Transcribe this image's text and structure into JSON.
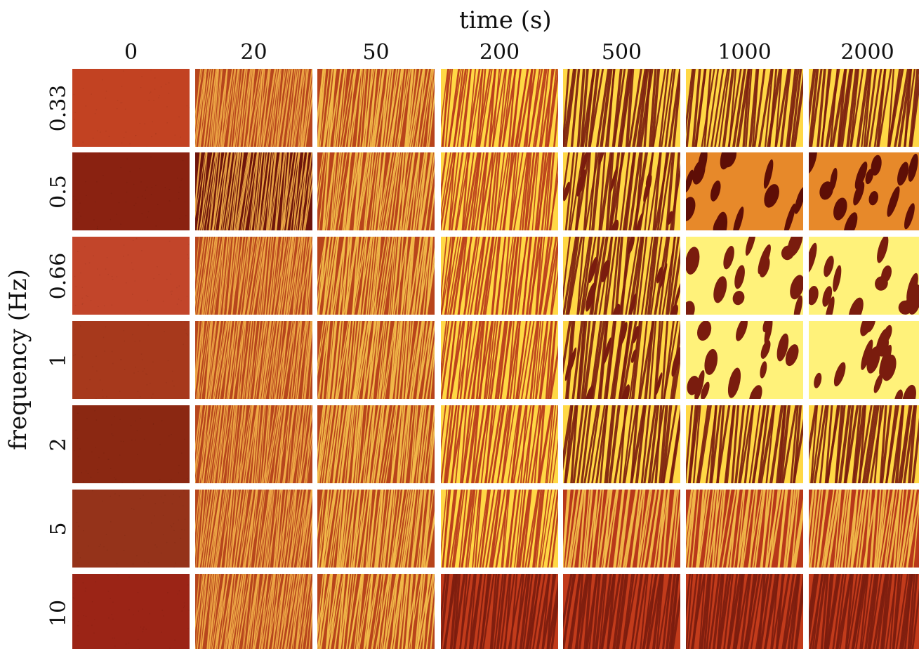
{
  "figure": {
    "x_axis_title": "time (s)",
    "y_axis_title": "frequency (Hz)",
    "time_labels": [
      "0",
      "20",
      "50",
      "200",
      "500",
      "1000",
      "2000"
    ],
    "frequency_labels": [
      "0.33",
      "0.5",
      "0.66",
      "1",
      "2",
      "5",
      "10"
    ],
    "colors": {
      "dark_red": "#7a1c0e",
      "mid_red": "#b8381a",
      "orange": "#e7892a",
      "yellow": "#ffd845",
      "pale_yellow": "#fff27a"
    },
    "tile_pattern_by_time": [
      "uniform",
      "fine-stripes",
      "fine-stripes",
      "stripes",
      "stripes-or-patches",
      "patches-or-stripes",
      "patches-or-stripes"
    ]
  }
}
